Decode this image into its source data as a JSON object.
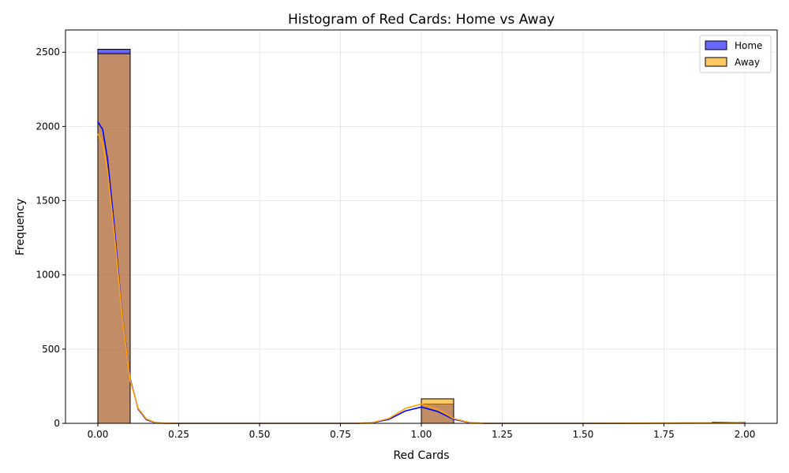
{
  "chart_data": {
    "type": "bar",
    "title": "Histogram of Red Cards: Home vs Away",
    "xlabel": "Red Cards",
    "ylabel": "Frequency",
    "xlim": [
      -0.1,
      2.1
    ],
    "ylim": [
      0,
      2650
    ],
    "xticks": [
      0.0,
      0.25,
      0.5,
      0.75,
      1.0,
      1.25,
      1.5,
      1.75,
      2.0
    ],
    "xtick_labels": [
      "0.00",
      "0.25",
      "0.50",
      "0.75",
      "1.00",
      "1.25",
      "1.50",
      "1.75",
      "2.00"
    ],
    "yticks": [
      0,
      500,
      1000,
      1500,
      2000,
      2500
    ],
    "ytick_labels": [
      "0",
      "500",
      "1000",
      "1500",
      "2000",
      "2500"
    ],
    "grid": true,
    "legend_position": "top-right",
    "bin_edges": [
      0.0,
      0.1,
      0.2,
      0.3,
      0.4,
      0.5,
      0.6,
      0.7,
      0.8,
      0.9,
      1.0,
      1.1,
      1.2,
      1.3,
      1.4,
      1.5,
      1.6,
      1.7,
      1.8,
      1.9,
      2.0
    ],
    "series": [
      {
        "name": "Home",
        "fill_color": "#0000ff",
        "kde_color": "#0000ff",
        "counts": [
          2520,
          0,
          0,
          0,
          0,
          0,
          0,
          0,
          0,
          0,
          130,
          0,
          0,
          0,
          0,
          0,
          0,
          0,
          0,
          5
        ],
        "kde": {
          "x": [
            0.0,
            0.015,
            0.03,
            0.05,
            0.075,
            0.1,
            0.125,
            0.15,
            0.175,
            0.2,
            0.25,
            0.5,
            0.8,
            0.85,
            0.9,
            0.95,
            1.0,
            1.05,
            1.1,
            1.15,
            1.2,
            1.5,
            1.9,
            2.0
          ],
          "y": [
            2030,
            1980,
            1780,
            1350,
            740,
            300,
            95,
            25,
            6,
            1,
            0,
            0,
            0,
            4,
            27,
            83,
            110,
            80,
            27,
            4,
            0,
            0,
            2,
            5
          ]
        }
      },
      {
        "name": "Away",
        "fill_color": "#ffa500",
        "kde_color": "#ffa500",
        "counts": [
          2490,
          0,
          0,
          0,
          0,
          0,
          0,
          0,
          0,
          0,
          165,
          0,
          0,
          0,
          0,
          0,
          0,
          0,
          0,
          8
        ],
        "kde": {
          "x": [
            0.0,
            0.015,
            0.03,
            0.05,
            0.075,
            0.1,
            0.125,
            0.15,
            0.175,
            0.2,
            0.25,
            0.5,
            0.8,
            0.85,
            0.9,
            0.95,
            1.0,
            1.05,
            1.1,
            1.15,
            1.2,
            1.5,
            1.9,
            2.0
          ],
          "y": [
            1950,
            1890,
            1700,
            1300,
            730,
            290,
            100,
            30,
            8,
            2,
            0,
            0,
            0,
            6,
            33,
            100,
            130,
            95,
            32,
            6,
            0,
            0,
            3,
            8
          ]
        }
      }
    ]
  }
}
